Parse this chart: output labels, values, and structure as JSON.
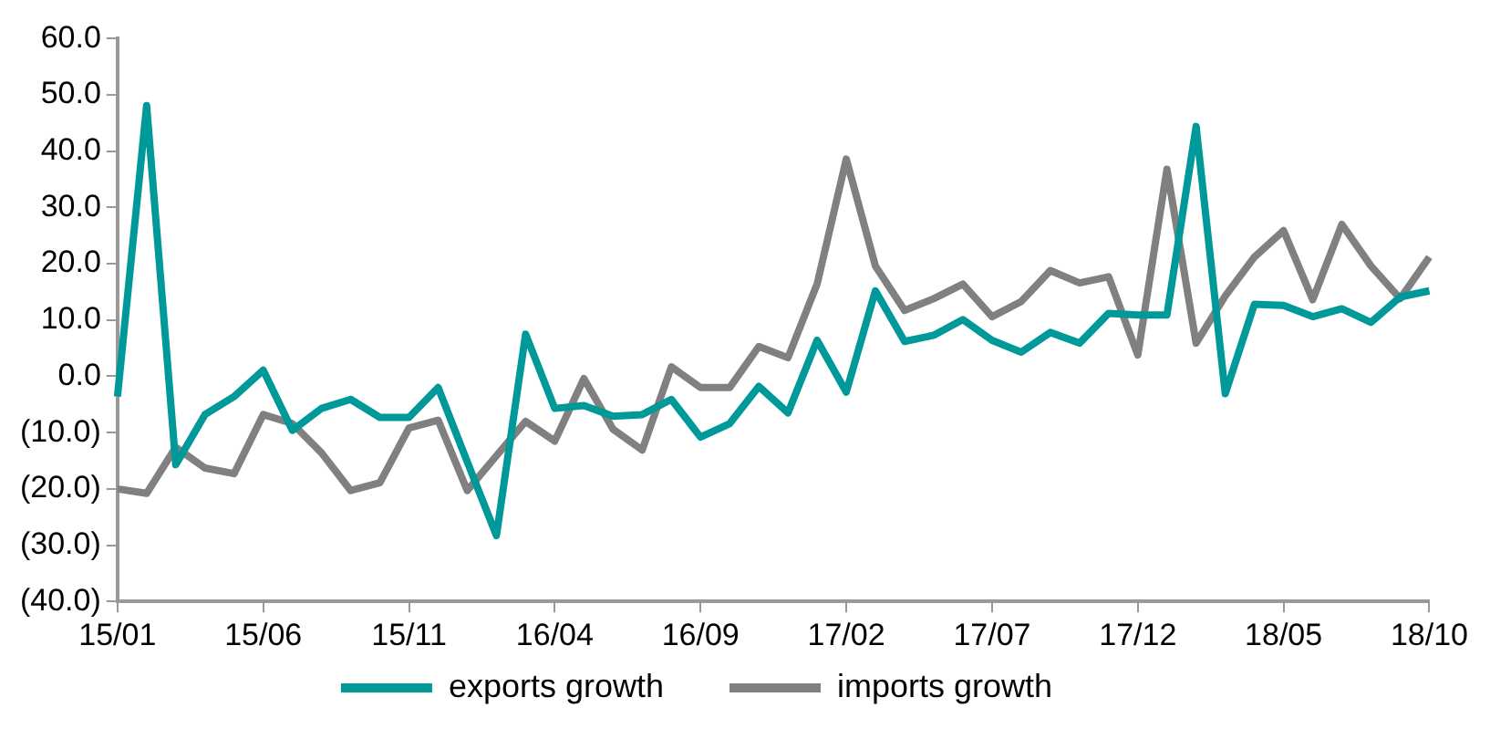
{
  "chart_data": {
    "type": "line",
    "categories": [
      "15/01",
      null,
      null,
      null,
      null,
      "15/06",
      null,
      null,
      null,
      null,
      "15/11",
      null,
      null,
      null,
      null,
      "16/04",
      null,
      null,
      null,
      null,
      "16/09",
      null,
      null,
      null,
      null,
      "17/02",
      null,
      null,
      null,
      null,
      "17/07",
      null,
      null,
      null,
      null,
      "17/12",
      null,
      null,
      null,
      null,
      "18/05",
      null,
      null,
      null,
      null,
      "18/10"
    ],
    "series": [
      {
        "name": "exports growth",
        "color": "#009999",
        "values": [
          -3.6,
          48.1,
          -15.7,
          -6.8,
          -3.6,
          1.1,
          -9.6,
          -5.7,
          -4.1,
          -7.3,
          -7.3,
          -2.0,
          -15.2,
          -28.3,
          7.5,
          -5.7,
          -5.2,
          -7.1,
          -6.8,
          -4.1,
          -10.8,
          -8.4,
          -1.8,
          -6.5,
          6.4,
          -2.8,
          15.2,
          6.2,
          7.3,
          10.1,
          6.4,
          4.3,
          7.8,
          5.9,
          11.2,
          10.9,
          10.9,
          44.4,
          -3.1,
          12.8,
          12.6,
          10.6,
          12.0,
          9.6,
          14.1,
          15.2
        ]
      },
      {
        "name": "imports growth",
        "color": "#808080",
        "values": [
          -20.0,
          -20.8,
          -12.6,
          -16.3,
          -17.3,
          -6.8,
          -8.4,
          -13.6,
          -20.3,
          -18.9,
          -9.2,
          -7.8,
          -20.3,
          -14.1,
          -8.0,
          -11.5,
          -0.4,
          -9.4,
          -13.1,
          1.7,
          -2.0,
          -2.0,
          5.3,
          3.3,
          16.4,
          38.6,
          19.6,
          11.7,
          13.8,
          16.4,
          10.6,
          13.3,
          18.8,
          16.6,
          17.7,
          3.8,
          36.8,
          5.9,
          14.3,
          21.2,
          25.9,
          13.6,
          27.0,
          19.6,
          13.8,
          21.2
        ]
      }
    ],
    "ylim": [
      -40,
      60
    ],
    "yticks": [
      {
        "value": -40,
        "label": "(40.0)"
      },
      {
        "value": -30,
        "label": "(30.0)"
      },
      {
        "value": -20,
        "label": "(20.0)"
      },
      {
        "value": -10,
        "label": "(10.0)"
      },
      {
        "value": 0,
        "label": "0.0"
      },
      {
        "value": 10,
        "label": "10.0"
      },
      {
        "value": 20,
        "label": "20.0"
      },
      {
        "value": 30,
        "label": "30.0"
      },
      {
        "value": 40,
        "label": "40.0"
      },
      {
        "value": 50,
        "label": "50.0"
      },
      {
        "value": 60,
        "label": "60.0"
      }
    ],
    "grid": false,
    "legend": "bottom",
    "marker": "none",
    "line_style": "solid"
  }
}
